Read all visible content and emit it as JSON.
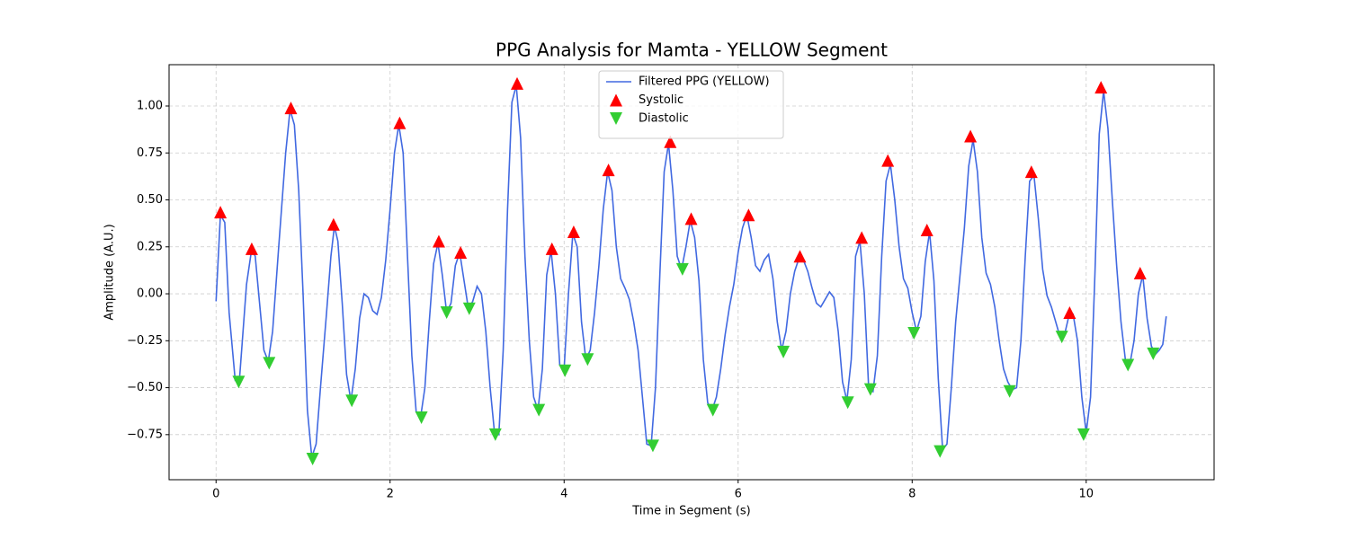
{
  "chart_data": {
    "type": "line",
    "title": "PPG Analysis for Mamta - YELLOW Segment",
    "x_label": "Time in Segment (s)",
    "y_label": "Amplitude (A.U.)",
    "xlim": [
      -0.54,
      11.47
    ],
    "ylim": [
      -0.99,
      1.22
    ],
    "xticks": [
      0,
      2,
      4,
      6,
      8,
      10
    ],
    "yticks": [
      {
        "value": -0.75,
        "label": "−0.75"
      },
      {
        "value": -0.5,
        "label": "−0.50"
      },
      {
        "value": -0.25,
        "label": "−0.25"
      },
      {
        "value": 0,
        "label": "0.00"
      },
      {
        "value": 0.25,
        "label": "0.25"
      },
      {
        "value": 0.5,
        "label": "0.50"
      },
      {
        "value": 0.75,
        "label": "0.75"
      },
      {
        "value": 1,
        "label": "1.00"
      }
    ],
    "grid": true,
    "legend": "upper center",
    "series": [
      {
        "name": "Filtered PPG (YELLOW)",
        "color": "#4169e1",
        "x": [
          0,
          0.05,
          0.1,
          0.15,
          0.22,
          0.27,
          0.35,
          0.41,
          0.45,
          0.5,
          0.55,
          0.6,
          0.65,
          0.72,
          0.8,
          0.85,
          0.9,
          0.95,
          1.0,
          1.05,
          1.1,
          1.15,
          1.2,
          1.27,
          1.32,
          1.36,
          1.4,
          1.45,
          1.5,
          1.55,
          1.6,
          1.65,
          1.7,
          1.75,
          1.8,
          1.85,
          1.9,
          1.95,
          2.0,
          2.05,
          2.1,
          2.15,
          2.2,
          2.25,
          2.3,
          2.35,
          2.4,
          2.45,
          2.5,
          2.55,
          2.6,
          2.65,
          2.7,
          2.75,
          2.8,
          2.85,
          2.9,
          2.95,
          3.0,
          3.05,
          3.1,
          3.15,
          3.2,
          3.25,
          3.3,
          3.35,
          3.4,
          3.45,
          3.5,
          3.55,
          3.6,
          3.65,
          3.7,
          3.75,
          3.8,
          3.85,
          3.9,
          3.95,
          4.0,
          4.05,
          4.1,
          4.15,
          4.2,
          4.25,
          4.3,
          4.35,
          4.4,
          4.45,
          4.5,
          4.55,
          4.6,
          4.65,
          4.7,
          4.75,
          4.8,
          4.85,
          4.9,
          4.95,
          5.0,
          5.05,
          5.1,
          5.15,
          5.2,
          5.25,
          5.3,
          5.35,
          5.4,
          5.45,
          5.5,
          5.55,
          5.6,
          5.65,
          5.7,
          5.75,
          5.8,
          5.85,
          5.9,
          5.95,
          6.0,
          6.05,
          6.1,
          6.15,
          6.2,
          6.25,
          6.3,
          6.35,
          6.4,
          6.45,
          6.5,
          6.55,
          6.6,
          6.65,
          6.7,
          6.75,
          6.8,
          6.85,
          6.9,
          6.95,
          7.0,
          7.05,
          7.1,
          7.15,
          7.2,
          7.25,
          7.3,
          7.35,
          7.4,
          7.45,
          7.5,
          7.55,
          7.6,
          7.65,
          7.7,
          7.75,
          7.8,
          7.85,
          7.9,
          7.95,
          8.0,
          8.05,
          8.1,
          8.15,
          8.2,
          8.25,
          8.3,
          8.35,
          8.4,
          8.45,
          8.5,
          8.55,
          8.6,
          8.65,
          8.7,
          8.75,
          8.8,
          8.85,
          8.9,
          8.95,
          9.0,
          9.05,
          9.1,
          9.15,
          9.2,
          9.25,
          9.3,
          9.35,
          9.4,
          9.45,
          9.5,
          9.55,
          9.6,
          9.65,
          9.7,
          9.75,
          9.8,
          9.85,
          9.9,
          9.95,
          10.0,
          10.05,
          10.1,
          10.15,
          10.2,
          10.25,
          10.3,
          10.35,
          10.4,
          10.45,
          10.5,
          10.55,
          10.6,
          10.65,
          10.7,
          10.75,
          10.8,
          10.84,
          10.88,
          10.92
        ],
        "values": [
          -0.04,
          0.42,
          0.38,
          -0.1,
          -0.46,
          -0.45,
          0.05,
          0.24,
          0.2,
          -0.05,
          -0.3,
          -0.36,
          -0.2,
          0.25,
          0.75,
          0.98,
          0.9,
          0.55,
          0.0,
          -0.62,
          -0.87,
          -0.8,
          -0.5,
          -0.1,
          0.2,
          0.36,
          0.28,
          -0.05,
          -0.43,
          -0.57,
          -0.4,
          -0.13,
          0.0,
          -0.02,
          -0.09,
          -0.11,
          -0.02,
          0.18,
          0.45,
          0.75,
          0.9,
          0.75,
          0.2,
          -0.33,
          -0.63,
          -0.66,
          -0.5,
          -0.15,
          0.16,
          0.27,
          0.1,
          -0.1,
          -0.05,
          0.15,
          0.22,
          0.07,
          -0.08,
          -0.04,
          0.04,
          0.0,
          -0.2,
          -0.5,
          -0.74,
          -0.75,
          -0.3,
          0.45,
          1.02,
          1.11,
          0.83,
          0.2,
          -0.25,
          -0.55,
          -0.62,
          -0.4,
          0.1,
          0.23,
          0.0,
          -0.38,
          -0.4,
          0.0,
          0.32,
          0.25,
          -0.15,
          -0.35,
          -0.3,
          -0.1,
          0.15,
          0.45,
          0.65,
          0.55,
          0.25,
          0.08,
          0.03,
          -0.03,
          -0.15,
          -0.3,
          -0.55,
          -0.8,
          -0.81,
          -0.5,
          0.1,
          0.65,
          0.8,
          0.55,
          0.2,
          0.13,
          0.25,
          0.39,
          0.3,
          0.07,
          -0.35,
          -0.58,
          -0.62,
          -0.55,
          -0.4,
          -0.22,
          -0.07,
          0.05,
          0.22,
          0.35,
          0.42,
          0.3,
          0.15,
          0.12,
          0.18,
          0.21,
          0.08,
          -0.15,
          -0.3,
          -0.2,
          0.0,
          0.12,
          0.19,
          0.18,
          0.12,
          0.03,
          -0.05,
          -0.07,
          -0.03,
          0.01,
          -0.02,
          -0.2,
          -0.47,
          -0.57,
          -0.35,
          0.2,
          0.28,
          0.0,
          -0.5,
          -0.52,
          -0.33,
          0.2,
          0.6,
          0.69,
          0.5,
          0.25,
          0.08,
          0.03,
          -0.1,
          -0.2,
          -0.12,
          0.17,
          0.33,
          0.07,
          -0.45,
          -0.83,
          -0.8,
          -0.5,
          -0.15,
          0.1,
          0.35,
          0.68,
          0.82,
          0.65,
          0.3,
          0.11,
          0.05,
          -0.07,
          -0.25,
          -0.4,
          -0.47,
          -0.51,
          -0.5,
          -0.25,
          0.2,
          0.6,
          0.63,
          0.4,
          0.13,
          -0.01,
          -0.07,
          -0.15,
          -0.23,
          -0.22,
          -0.12,
          -0.11,
          -0.25,
          -0.55,
          -0.74,
          -0.55,
          0.1,
          0.85,
          1.08,
          0.88,
          0.5,
          0.15,
          -0.15,
          -0.35,
          -0.38,
          -0.25,
          0.0,
          0.1,
          -0.13,
          -0.28,
          -0.32,
          -0.3,
          -0.27,
          -0.12
        ]
      },
      {
        "name": "Systolic",
        "color": "#ff0000",
        "marker": "triangle-up",
        "x": [
          0.05,
          0.41,
          0.86,
          1.35,
          2.11,
          2.56,
          2.81,
          3.46,
          3.86,
          4.11,
          4.51,
          5.22,
          5.46,
          6.12,
          6.71,
          7.42,
          7.72,
          8.17,
          8.67,
          9.37,
          9.81,
          10.17,
          10.62
        ],
        "values": [
          0.435,
          0.24,
          0.99,
          0.37,
          0.91,
          0.28,
          0.22,
          1.12,
          0.24,
          0.33,
          0.66,
          0.81,
          0.4,
          0.42,
          0.2,
          0.3,
          0.71,
          0.34,
          0.84,
          0.65,
          -0.1,
          1.1,
          0.11
        ]
      },
      {
        "name": "Diastolic",
        "color": "#32cd32",
        "marker": "triangle-down",
        "x": [
          0.26,
          0.61,
          1.11,
          1.56,
          2.36,
          2.65,
          2.91,
          3.21,
          3.71,
          4.01,
          4.27,
          5.02,
          5.36,
          5.71,
          6.52,
          7.26,
          7.52,
          8.02,
          8.32,
          9.12,
          9.72,
          9.97,
          10.48,
          10.77
        ],
        "values": [
          -0.47,
          -0.37,
          -0.88,
          -0.57,
          -0.66,
          -0.1,
          -0.08,
          -0.75,
          -0.62,
          -0.41,
          -0.35,
          -0.81,
          0.13,
          -0.62,
          -0.31,
          -0.58,
          -0.51,
          -0.21,
          -0.84,
          -0.52,
          -0.23,
          -0.75,
          -0.38,
          -0.32
        ]
      }
    ]
  }
}
